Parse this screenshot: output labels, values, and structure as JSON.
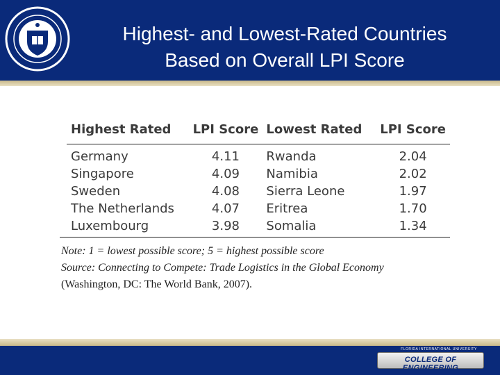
{
  "slide": {
    "title_line1": "Highest- and Lowest-Rated Countries",
    "title_line2": "Based on Overall LPI Score"
  },
  "table": {
    "headers": [
      "Highest Rated",
      "LPI Score",
      "Lowest Rated",
      "LPI Score"
    ],
    "rows": [
      [
        "Germany",
        "4.11",
        "Rwanda",
        "2.04"
      ],
      [
        "Singapore",
        "4.09",
        "Namibia",
        "2.02"
      ],
      [
        "Sweden",
        "4.08",
        "Sierra Leone",
        "1.97"
      ],
      [
        "The Netherlands",
        "4.07",
        "Eritrea",
        "1.70"
      ],
      [
        "Luxembourg",
        "3.98",
        "Somalia",
        "1.34"
      ]
    ]
  },
  "notes": {
    "note": "Note: 1 = lowest possible score; 5 = highest possible score",
    "source_prefix": "Source: ",
    "source_title": "Connecting to Compete: Trade Logistics in the Global Economy",
    "source_pub": "(Washington, DC: The World Bank, 2007)."
  },
  "footer": {
    "badge_small": "FLORIDA INTERNATIONAL UNIVERSITY",
    "badge_main": "COLLEGE OF ENGINEERING"
  },
  "colors": {
    "brand_blue": "#0a2a7a",
    "gold": "#c9b98a"
  },
  "icons": {
    "seal": "university-seal-icon"
  }
}
